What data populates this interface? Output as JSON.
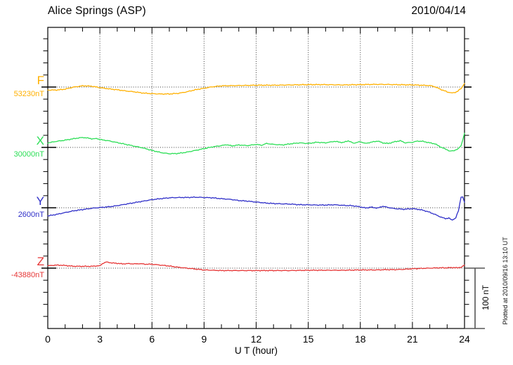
{
  "header": {
    "title": "Alice Springs (ASP)",
    "date": "2010/04/14"
  },
  "footer": {
    "xlabel": "U T (hour)"
  },
  "scale_bar": {
    "label": "100 nT",
    "span_nT": 100
  },
  "watermark": {
    "text": "Plotted at 2010/09/16 13:10 UT"
  },
  "chart_data": {
    "type": "line",
    "title": "Alice Springs (ASP)",
    "subtitle": "2010/04/14",
    "xlabel": "U T (hour)",
    "x_range": [
      0,
      24
    ],
    "x_ticks": [
      0,
      3,
      6,
      9,
      12,
      15,
      18,
      21,
      24
    ],
    "grid": "dotted vertical lines every 3 h; dotted horizontal baseline per channel",
    "legend_position": "left margin channel labels",
    "y_scale": {
      "tick_nT": 20,
      "scale_bar_nT": 100
    },
    "series": [
      {
        "name": "F",
        "base_label": "53230nT",
        "base_value": 53230,
        "color": "#FFB000",
        "units": "nT offset from base",
        "points": [
          [
            0,
            -5
          ],
          [
            0.5,
            -5
          ],
          [
            1,
            -3.5
          ],
          [
            1.5,
            0
          ],
          [
            2,
            2
          ],
          [
            2.5,
            1.5
          ],
          [
            3,
            -1
          ],
          [
            3.5,
            -3
          ],
          [
            4,
            -4.5
          ],
          [
            4.5,
            -6.5
          ],
          [
            5,
            -8
          ],
          [
            5.5,
            -10
          ],
          [
            6,
            -11
          ],
          [
            6.5,
            -11.5
          ],
          [
            7,
            -11.5
          ],
          [
            7.5,
            -10.5
          ],
          [
            8,
            -8
          ],
          [
            8.5,
            -4.5
          ],
          [
            9,
            -2
          ],
          [
            9.5,
            0.5
          ],
          [
            10,
            2
          ],
          [
            11,
            2.5
          ],
          [
            12,
            3
          ],
          [
            13,
            3
          ],
          [
            14,
            3.5
          ],
          [
            15,
            4
          ],
          [
            16,
            4
          ],
          [
            17,
            3.5
          ],
          [
            18,
            4
          ],
          [
            19,
            4.5
          ],
          [
            20,
            4
          ],
          [
            21,
            3.5
          ],
          [
            21.5,
            3
          ],
          [
            22,
            2.5
          ],
          [
            22.3,
            0.5
          ],
          [
            22.6,
            -3.5
          ],
          [
            23,
            -8
          ],
          [
            23.2,
            -9.5
          ],
          [
            23.4,
            -9.5
          ],
          [
            23.6,
            -7
          ],
          [
            23.8,
            -2.5
          ],
          [
            24,
            6
          ]
        ]
      },
      {
        "name": "X",
        "base_label": "30000nT",
        "base_value": 30000,
        "color": "#2BDE55",
        "units": "nT offset from base",
        "points": [
          [
            0,
            7.5
          ],
          [
            0.5,
            10
          ],
          [
            1,
            12
          ],
          [
            1.5,
            14.5
          ],
          [
            2,
            16.5
          ],
          [
            2.3,
            15.5
          ],
          [
            2.6,
            14
          ],
          [
            2.8,
            15
          ],
          [
            3,
            13
          ],
          [
            3.5,
            11
          ],
          [
            4,
            8
          ],
          [
            4.5,
            5
          ],
          [
            5,
            2
          ],
          [
            5.5,
            -1
          ],
          [
            6,
            -5
          ],
          [
            6.5,
            -8.5
          ],
          [
            7,
            -10.5
          ],
          [
            7.5,
            -10
          ],
          [
            8,
            -8
          ],
          [
            8.5,
            -5
          ],
          [
            9,
            -2
          ],
          [
            9.5,
            1
          ],
          [
            10,
            3
          ],
          [
            10.3,
            4.5
          ],
          [
            10.6,
            2.5
          ],
          [
            11,
            4
          ],
          [
            11.5,
            3
          ],
          [
            12,
            5
          ],
          [
            12.3,
            3.5
          ],
          [
            12.6,
            6.5
          ],
          [
            13,
            5
          ],
          [
            13.5,
            4
          ],
          [
            14,
            6
          ],
          [
            14.5,
            7.5
          ],
          [
            15,
            6.5
          ],
          [
            15.5,
            8.5
          ],
          [
            16,
            7.5
          ],
          [
            16.5,
            10
          ],
          [
            17,
            8
          ],
          [
            17.3,
            11
          ],
          [
            17.6,
            7
          ],
          [
            18,
            9.5
          ],
          [
            18.3,
            6.5
          ],
          [
            18.6,
            8.5
          ],
          [
            19,
            10.5
          ],
          [
            19.3,
            7.5
          ],
          [
            19.6,
            6.5
          ],
          [
            20,
            9.5
          ],
          [
            20.3,
            11
          ],
          [
            20.6,
            7.5
          ],
          [
            21,
            8.5
          ],
          [
            21.3,
            10.5
          ],
          [
            21.6,
            10
          ],
          [
            22,
            7.5
          ],
          [
            22.3,
            6
          ],
          [
            22.6,
            1
          ],
          [
            23,
            -4
          ],
          [
            23.2,
            -6.5
          ],
          [
            23.4,
            -5
          ],
          [
            23.6,
            -3
          ],
          [
            23.8,
            2.5
          ],
          [
            24,
            23.5
          ]
        ]
      },
      {
        "name": "Y",
        "base_label": "2600nT",
        "base_value": 2600,
        "color": "#2E2EC8",
        "units": "nT offset from base",
        "points": [
          [
            0,
            -13.5
          ],
          [
            0.5,
            -11
          ],
          [
            1,
            -8
          ],
          [
            1.5,
            -5
          ],
          [
            2,
            -3
          ],
          [
            2.5,
            -1
          ],
          [
            3,
            0.5
          ],
          [
            3.5,
            1.5
          ],
          [
            4,
            3.5
          ],
          [
            4.5,
            6
          ],
          [
            5,
            8.5
          ],
          [
            5.5,
            11
          ],
          [
            6,
            13.5
          ],
          [
            6.5,
            15
          ],
          [
            7,
            16.5
          ],
          [
            7.5,
            17
          ],
          [
            8,
            17
          ],
          [
            8.5,
            17.5
          ],
          [
            9,
            17
          ],
          [
            9.5,
            16.5
          ],
          [
            10,
            15
          ],
          [
            10.5,
            14
          ],
          [
            11,
            12
          ],
          [
            11.5,
            11
          ],
          [
            12,
            9.5
          ],
          [
            12.5,
            8
          ],
          [
            13,
            7
          ],
          [
            13.5,
            6.5
          ],
          [
            14,
            6
          ],
          [
            14.5,
            5
          ],
          [
            15,
            5
          ],
          [
            15.5,
            4.5
          ],
          [
            16,
            4.5
          ],
          [
            16.5,
            5
          ],
          [
            17,
            4
          ],
          [
            17.5,
            3.5
          ],
          [
            18,
            1.5
          ],
          [
            18.3,
            -0.5
          ],
          [
            18.6,
            1
          ],
          [
            19,
            -0.5
          ],
          [
            19.3,
            2.5
          ],
          [
            19.6,
            0.5
          ],
          [
            20,
            -1.5
          ],
          [
            20.5,
            -2.5
          ],
          [
            21,
            -1.5
          ],
          [
            21.3,
            -2.5
          ],
          [
            21.6,
            -4
          ],
          [
            22,
            -7.5
          ],
          [
            22.3,
            -11
          ],
          [
            22.6,
            -15
          ],
          [
            22.9,
            -18
          ],
          [
            23.1,
            -17
          ],
          [
            23.3,
            -20.5
          ],
          [
            23.5,
            -16.5
          ],
          [
            23.65,
            -5
          ],
          [
            23.8,
            18
          ],
          [
            23.9,
            17.5
          ],
          [
            24,
            9
          ]
        ]
      },
      {
        "name": "Z",
        "base_label": "-43880nT",
        "base_value": -43880,
        "color": "#E63535",
        "units": "nT offset from base",
        "points": [
          [
            0,
            4
          ],
          [
            0.5,
            5
          ],
          [
            1,
            4.5
          ],
          [
            1.3,
            3.5
          ],
          [
            1.6,
            3
          ],
          [
            2,
            3
          ],
          [
            2.5,
            3
          ],
          [
            3,
            4
          ],
          [
            3.2,
            8.5
          ],
          [
            3.4,
            10
          ],
          [
            3.7,
            8.5
          ],
          [
            4,
            8
          ],
          [
            4.3,
            7
          ],
          [
            4.6,
            7.5
          ],
          [
            5,
            7
          ],
          [
            5.3,
            7.5
          ],
          [
            5.6,
            6.5
          ],
          [
            6,
            6.5
          ],
          [
            6.5,
            5
          ],
          [
            7,
            3.5
          ],
          [
            7.5,
            1.5
          ],
          [
            8,
            0
          ],
          [
            8.5,
            -1.5
          ],
          [
            9,
            -3
          ],
          [
            9.5,
            -3.5
          ],
          [
            10,
            -4
          ],
          [
            11,
            -4
          ],
          [
            12,
            -4
          ],
          [
            13,
            -4
          ],
          [
            14,
            -4
          ],
          [
            15,
            -3.5
          ],
          [
            16,
            -3.5
          ],
          [
            17,
            -3.5
          ],
          [
            18,
            -3
          ],
          [
            19,
            -3
          ],
          [
            19.5,
            -2.5
          ],
          [
            20,
            -2.5
          ],
          [
            20.5,
            -2
          ],
          [
            21,
            -1
          ],
          [
            21.5,
            -0.5
          ],
          [
            22,
            0
          ],
          [
            22.5,
            0.5
          ],
          [
            23,
            0.5
          ],
          [
            23.3,
            1
          ],
          [
            23.6,
            0.5
          ],
          [
            23.8,
            1.5
          ],
          [
            24,
            5
          ]
        ]
      }
    ]
  }
}
